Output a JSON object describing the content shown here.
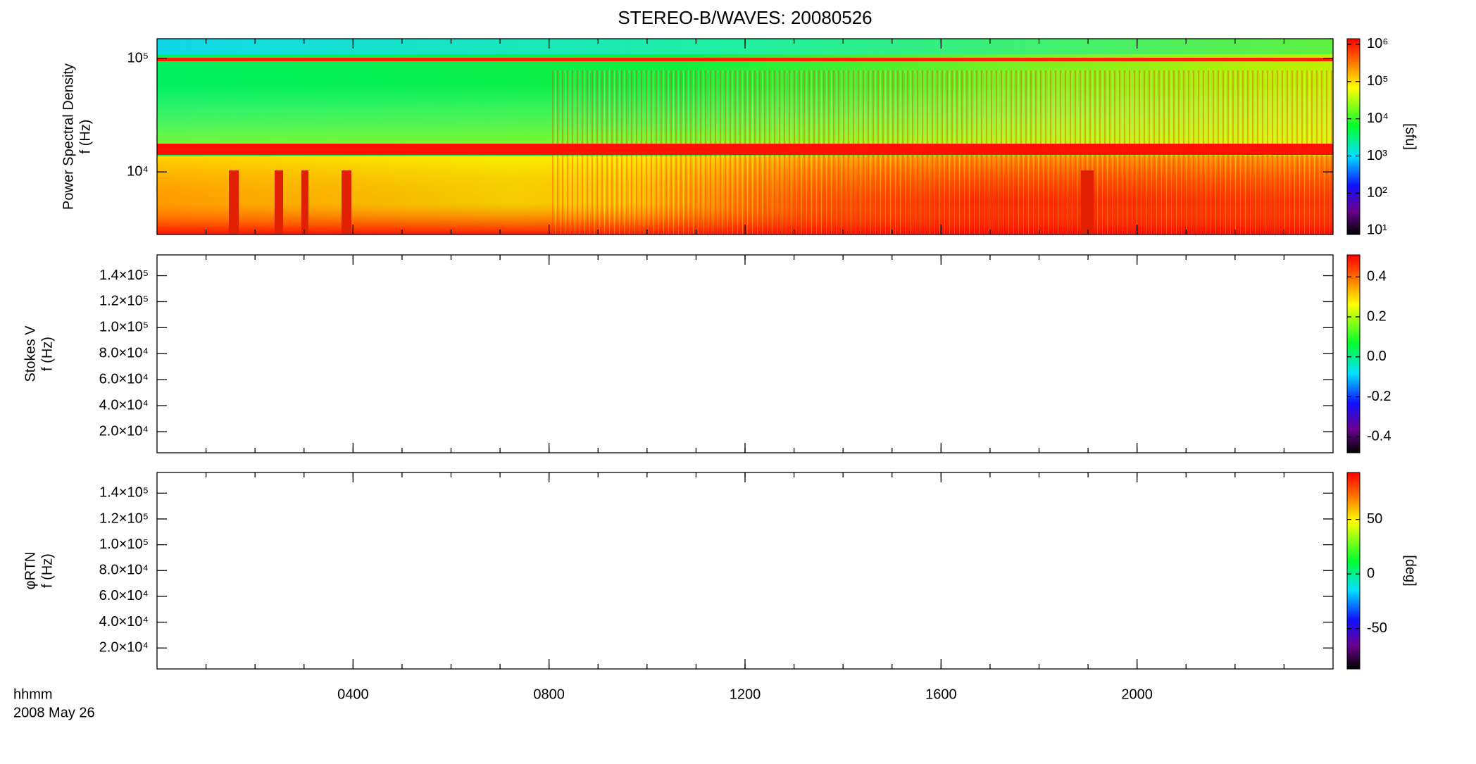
{
  "chart_data": [
    {
      "type": "heatmap",
      "title": "STEREO-B/WAVES: 20080526",
      "ylabel": [
        "Power Spectral Density",
        "f (Hz)"
      ],
      "log_y": true,
      "ylim": [
        2800,
        150000
      ],
      "yticks": [
        {
          "value": 10000,
          "label": "10⁴"
        },
        {
          "value": 100000,
          "label": "10⁵"
        }
      ],
      "xlim": [
        0,
        24
      ],
      "colorbar": {
        "log": true,
        "clim": [
          7.8,
          1410000
        ],
        "label": "[sfu]",
        "ticks": [
          {
            "value": 10,
            "label": "10¹"
          },
          {
            "value": 100,
            "label": "10²"
          },
          {
            "value": 1000,
            "label": "10³"
          },
          {
            "value": 10000,
            "label": "10⁴"
          },
          {
            "value": 100000,
            "label": "10⁵"
          },
          {
            "value": 1000000,
            "label": "10⁶"
          }
        ]
      }
    },
    {
      "type": "heatmap",
      "ylabel": [
        "Stokes V",
        "f (Hz)"
      ],
      "log_y": false,
      "ylim": [
        3750,
        156000
      ],
      "yticks": [
        {
          "value": 20000,
          "label": "2.0×10⁴"
        },
        {
          "value": 40000,
          "label": "4.0×10⁴"
        },
        {
          "value": 60000,
          "label": "6.0×10⁴"
        },
        {
          "value": 80000,
          "label": "8.0×10⁴"
        },
        {
          "value": 100000,
          "label": "1.0×10⁵"
        },
        {
          "value": 120000,
          "label": "1.2×10⁵"
        },
        {
          "value": 140000,
          "label": "1.4×10⁵"
        }
      ],
      "xlim": [
        0,
        24
      ],
      "colorbar": {
        "log": false,
        "clim": [
          -0.48,
          0.51
        ],
        "ticks": [
          {
            "value": -0.4,
            "label": "-0.4"
          },
          {
            "value": -0.2,
            "label": "-0.2"
          },
          {
            "value": 0,
            "label": "0.0"
          },
          {
            "value": 0.2,
            "label": "0.2"
          },
          {
            "value": 0.4,
            "label": "0.4"
          }
        ]
      }
    },
    {
      "type": "heatmap",
      "ylabel": [
        "φRTN",
        "f (Hz)"
      ],
      "log_y": false,
      "ylim": [
        3750,
        156000
      ],
      "yticks": [
        {
          "value": 20000,
          "label": "2.0×10⁴"
        },
        {
          "value": 40000,
          "label": "4.0×10⁴"
        },
        {
          "value": 60000,
          "label": "6.0×10⁴"
        },
        {
          "value": 80000,
          "label": "8.0×10⁴"
        },
        {
          "value": 100000,
          "label": "1.0×10⁵"
        },
        {
          "value": 120000,
          "label": "1.2×10⁵"
        },
        {
          "value": 140000,
          "label": "1.4×10⁵"
        }
      ],
      "xlim": [
        0,
        24
      ],
      "xticks": [
        {
          "value": 4,
          "label": "0400"
        },
        {
          "value": 8,
          "label": "0800"
        },
        {
          "value": 12,
          "label": "1200"
        },
        {
          "value": 16,
          "label": "1600"
        },
        {
          "value": 20,
          "label": "2000"
        }
      ],
      "xlabel": [
        "hhmm",
        "2008 May 26"
      ],
      "colorbar": {
        "log": false,
        "clim": [
          -87,
          93
        ],
        "label": "[deg]",
        "ticks": [
          {
            "value": -50,
            "label": "-50"
          },
          {
            "value": 0,
            "label": "0"
          },
          {
            "value": 50,
            "label": "50"
          }
        ]
      }
    }
  ]
}
